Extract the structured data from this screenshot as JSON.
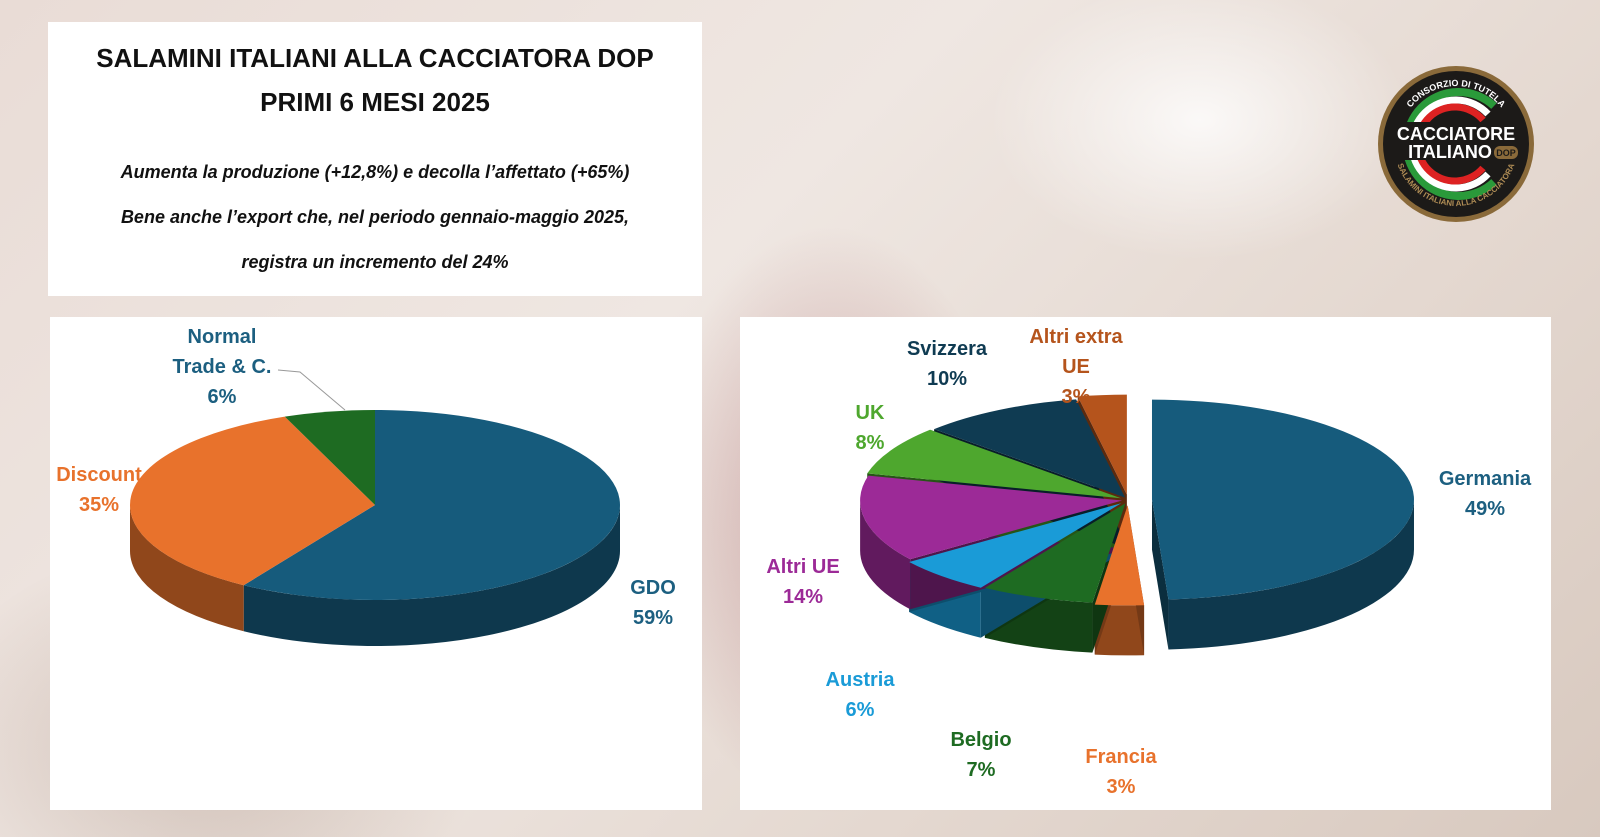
{
  "header": {
    "title_line1": "SALAMINI ITALIANI ALLA CACCIATORA DOP",
    "title_line2": "PRIMI 6 MESI 2025",
    "subtitle_line1": "Aumenta la produzione (+12,8%) e decolla l’affettato (+65%)",
    "subtitle_line2": "Bene anche l’export che, nel periodo gennaio-maggio 2025,",
    "subtitle_line3": "registra un incremento del 24%"
  },
  "logo": {
    "top_text": "CONSORZIO DI TUTELA",
    "line1": "CACCIATORE",
    "line2": "ITALIANO",
    "badge": "DOP",
    "bottom_text": "SALAMINI ITALIANI ALLA CACCIATORA"
  },
  "chart_data": [
    {
      "type": "pie",
      "style": "3d",
      "title": "",
      "categories": [
        "GDO",
        "Discount",
        "Normal Trade & C."
      ],
      "values": [
        59,
        35,
        6
      ],
      "labels": [
        [
          "GDO",
          "59%"
        ],
        [
          "Discount",
          "35%"
        ],
        [
          "Normal",
          "Trade & C.",
          "6%"
        ]
      ],
      "colors": [
        "#165b7c",
        "#e8722c",
        "#1e6b22"
      ],
      "label_colors": [
        "#1c5f80",
        "#e8722c",
        "#1c5f80"
      ]
    },
    {
      "type": "pie",
      "style": "3d-exploded",
      "title": "",
      "categories": [
        "Germania",
        "Francia",
        "Belgio",
        "Austria",
        "Altri UE",
        "UK",
        "Svizzera",
        "Altri extra UE"
      ],
      "values": [
        49,
        3,
        7,
        6,
        14,
        8,
        10,
        3
      ],
      "labels": [
        [
          "Germania",
          "49%"
        ],
        [
          "Francia",
          "3%"
        ],
        [
          "Belgio",
          "7%"
        ],
        [
          "Austria",
          "6%"
        ],
        [
          "Altri UE",
          "14%"
        ],
        [
          "UK",
          "8%"
        ],
        [
          "Svizzera",
          "10%"
        ],
        [
          "Altri extra",
          "UE",
          "3%"
        ]
      ],
      "colors": [
        "#165b7c",
        "#e8722c",
        "#1e6b22",
        "#1a9bd7",
        "#9c2a97",
        "#4ea72e",
        "#0f3b52",
        "#b5541c"
      ],
      "label_colors": [
        "#1c5f80",
        "#e8722c",
        "#1e6b22",
        "#1a9bd7",
        "#9c2a97",
        "#4ea72e",
        "#0f3b52",
        "#b5541c"
      ]
    }
  ]
}
